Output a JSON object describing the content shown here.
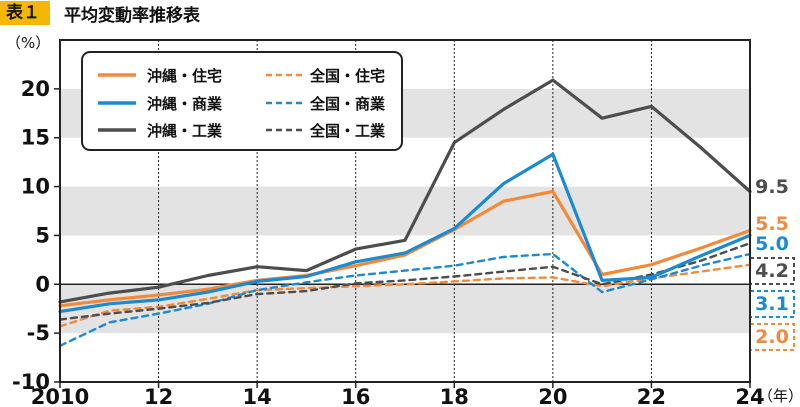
{
  "header": {
    "badge": "表１",
    "title": "平均変動率推移表"
  },
  "chart_data": {
    "type": "line",
    "unit_label": "（%）",
    "year_unit": "（年）",
    "x": [
      2010,
      2011,
      2012,
      2013,
      2014,
      2015,
      2016,
      2017,
      2018,
      2019,
      2020,
      2021,
      2022,
      2023,
      2024
    ],
    "x_ticks": [
      {
        "value": 2010,
        "label": "2010"
      },
      {
        "value": 2012,
        "label": "12"
      },
      {
        "value": 2014,
        "label": "14"
      },
      {
        "value": 2016,
        "label": "16"
      },
      {
        "value": 2018,
        "label": "18"
      },
      {
        "value": 2020,
        "label": "20"
      },
      {
        "value": 2022,
        "label": "22"
      },
      {
        "value": 2024,
        "label": "24"
      }
    ],
    "y_ticks": [
      {
        "value": 20,
        "label": "20"
      },
      {
        "value": 15,
        "label": "15"
      },
      {
        "value": 10,
        "label": "10"
      },
      {
        "value": 5,
        "label": "5"
      },
      {
        "value": 0,
        "label": "0"
      },
      {
        "value": -5,
        "label": "-5"
      },
      {
        "value": -10,
        "label": "-10"
      }
    ],
    "ylim": [
      -10,
      25
    ],
    "xlim": [
      2010,
      2024
    ],
    "shaded_bands": [
      [
        15,
        20
      ],
      [
        5,
        10
      ],
      [
        -5,
        0
      ]
    ],
    "series": [
      {
        "name": "沖縄・住宅",
        "color": "#f28a3a",
        "dashed": false,
        "values": [
          -2.2,
          -1.6,
          -1.1,
          -0.5,
          0.4,
          0.9,
          1.9,
          3.0,
          5.6,
          8.5,
          9.5,
          1.0,
          2.0,
          3.7,
          5.5
        ],
        "end_label": "5.5",
        "end_boxed": false
      },
      {
        "name": "全国・住宅",
        "color": "#f28a3a",
        "dashed": true,
        "values": [
          -4.3,
          -2.7,
          -2.3,
          -1.5,
          -0.6,
          -0.4,
          -0.2,
          0.0,
          0.3,
          0.6,
          0.7,
          -0.2,
          0.6,
          1.3,
          2.0
        ],
        "end_label": "2.0",
        "end_boxed": true
      },
      {
        "name": "沖縄・商業",
        "color": "#1b8ad2",
        "dashed": false,
        "values": [
          -2.8,
          -2.0,
          -1.6,
          -0.8,
          0.3,
          0.8,
          2.3,
          3.2,
          5.7,
          10.3,
          13.3,
          0.4,
          0.7,
          2.9,
          5.0
        ],
        "end_label": "5.0",
        "end_boxed": false
      },
      {
        "name": "全国・商業",
        "color": "#1b8ad2",
        "dashed": true,
        "values": [
          -6.3,
          -3.9,
          -3.0,
          -2.0,
          -0.6,
          0.2,
          0.9,
          1.4,
          1.9,
          2.8,
          3.1,
          -0.8,
          0.5,
          1.9,
          3.1
        ],
        "end_label": "3.1",
        "end_boxed": true
      },
      {
        "name": "沖縄・工業",
        "color": "#4d4d4d",
        "dashed": false,
        "values": [
          -1.8,
          -0.9,
          -0.3,
          0.9,
          1.8,
          1.4,
          3.6,
          4.5,
          14.5,
          17.9,
          20.9,
          17.0,
          18.2,
          14.0,
          9.5
        ],
        "end_label": "9.5",
        "end_boxed": false
      },
      {
        "name": "全国・工業",
        "color": "#4d4d4d",
        "dashed": true,
        "values": [
          -3.6,
          -3.0,
          -2.5,
          -1.9,
          -1.0,
          -0.7,
          0.1,
          0.4,
          0.8,
          1.3,
          1.8,
          0.0,
          1.0,
          2.4,
          4.2
        ],
        "end_label": "4.2",
        "end_boxed": true
      }
    ]
  }
}
